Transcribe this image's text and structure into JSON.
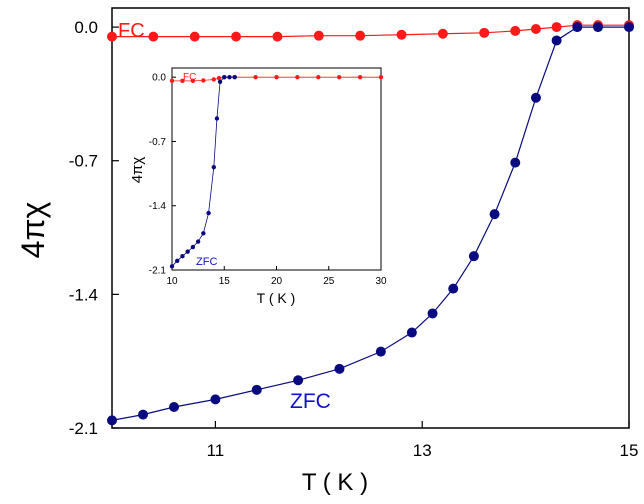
{
  "chart_data": {
    "type": "scatter",
    "xlabel": "T ( K )",
    "ylabel": "4πχ",
    "xlim": [
      10,
      15
    ],
    "ylim": [
      -2.1,
      0.1
    ],
    "xticks": [
      "11",
      "13",
      "15"
    ],
    "yticks": [
      "0.0",
      "-0.7",
      "-1.4",
      "-2.1"
    ],
    "grid": false,
    "series": [
      {
        "name": "FC",
        "color": "#ff1a1a",
        "x": [
          10.0,
          10.4,
          10.8,
          11.2,
          11.6,
          12.0,
          12.4,
          12.8,
          13.2,
          13.6,
          13.9,
          14.1,
          14.3,
          14.5,
          14.7,
          15.0
        ],
        "y": [
          -0.05,
          -0.05,
          -0.05,
          -0.05,
          -0.05,
          -0.045,
          -0.045,
          -0.04,
          -0.035,
          -0.03,
          -0.02,
          -0.01,
          0.0,
          0.01,
          0.01,
          0.01
        ]
      },
      {
        "name": "ZFC",
        "color": "#0a0a80",
        "x": [
          10.0,
          10.3,
          10.6,
          11.0,
          11.4,
          11.8,
          12.2,
          12.6,
          12.9,
          13.1,
          13.3,
          13.5,
          13.7,
          13.9,
          14.1,
          14.3,
          14.5,
          14.7,
          15.0
        ],
        "y": [
          -2.06,
          -2.03,
          -1.99,
          -1.95,
          -1.9,
          -1.85,
          -1.79,
          -1.7,
          -1.6,
          -1.5,
          -1.37,
          -1.2,
          -0.98,
          -0.71,
          -0.37,
          -0.07,
          0.0,
          0.0,
          0.0
        ]
      }
    ],
    "inset": {
      "xlabel": "T ( K )",
      "ylabel": "4πχ",
      "xlim": [
        10,
        30
      ],
      "ylim": [
        -2.1,
        0.1
      ],
      "xticks": [
        "10",
        "15",
        "20",
        "25",
        "30"
      ],
      "yticks": [
        "0.0",
        "-0.7",
        "-1.4",
        "-2.1"
      ],
      "series": [
        {
          "name": "FC",
          "color": "#ff1a1a",
          "x": [
            10.0,
            11.0,
            12.0,
            13.0,
            14.0,
            14.5,
            15.0,
            16.0,
            18.0,
            20.0,
            22.0,
            24.0,
            26.0,
            28.0,
            30.0
          ],
          "y": [
            -0.04,
            -0.04,
            -0.04,
            -0.035,
            -0.025,
            -0.01,
            0.0,
            0.0,
            0.0,
            0.0,
            0.0,
            0.0,
            0.0,
            0.0,
            0.0
          ]
        },
        {
          "name": "ZFC",
          "color": "#0a0a80",
          "x": [
            10.0,
            10.5,
            11.0,
            11.5,
            12.0,
            12.5,
            13.0,
            13.5,
            14.0,
            14.3,
            14.6,
            15.0,
            15.5,
            16.0
          ],
          "y": [
            -2.06,
            -2.0,
            -1.95,
            -1.9,
            -1.85,
            -1.79,
            -1.7,
            -1.48,
            -0.98,
            -0.45,
            -0.05,
            0.0,
            0.0,
            0.0
          ]
        }
      ]
    }
  }
}
